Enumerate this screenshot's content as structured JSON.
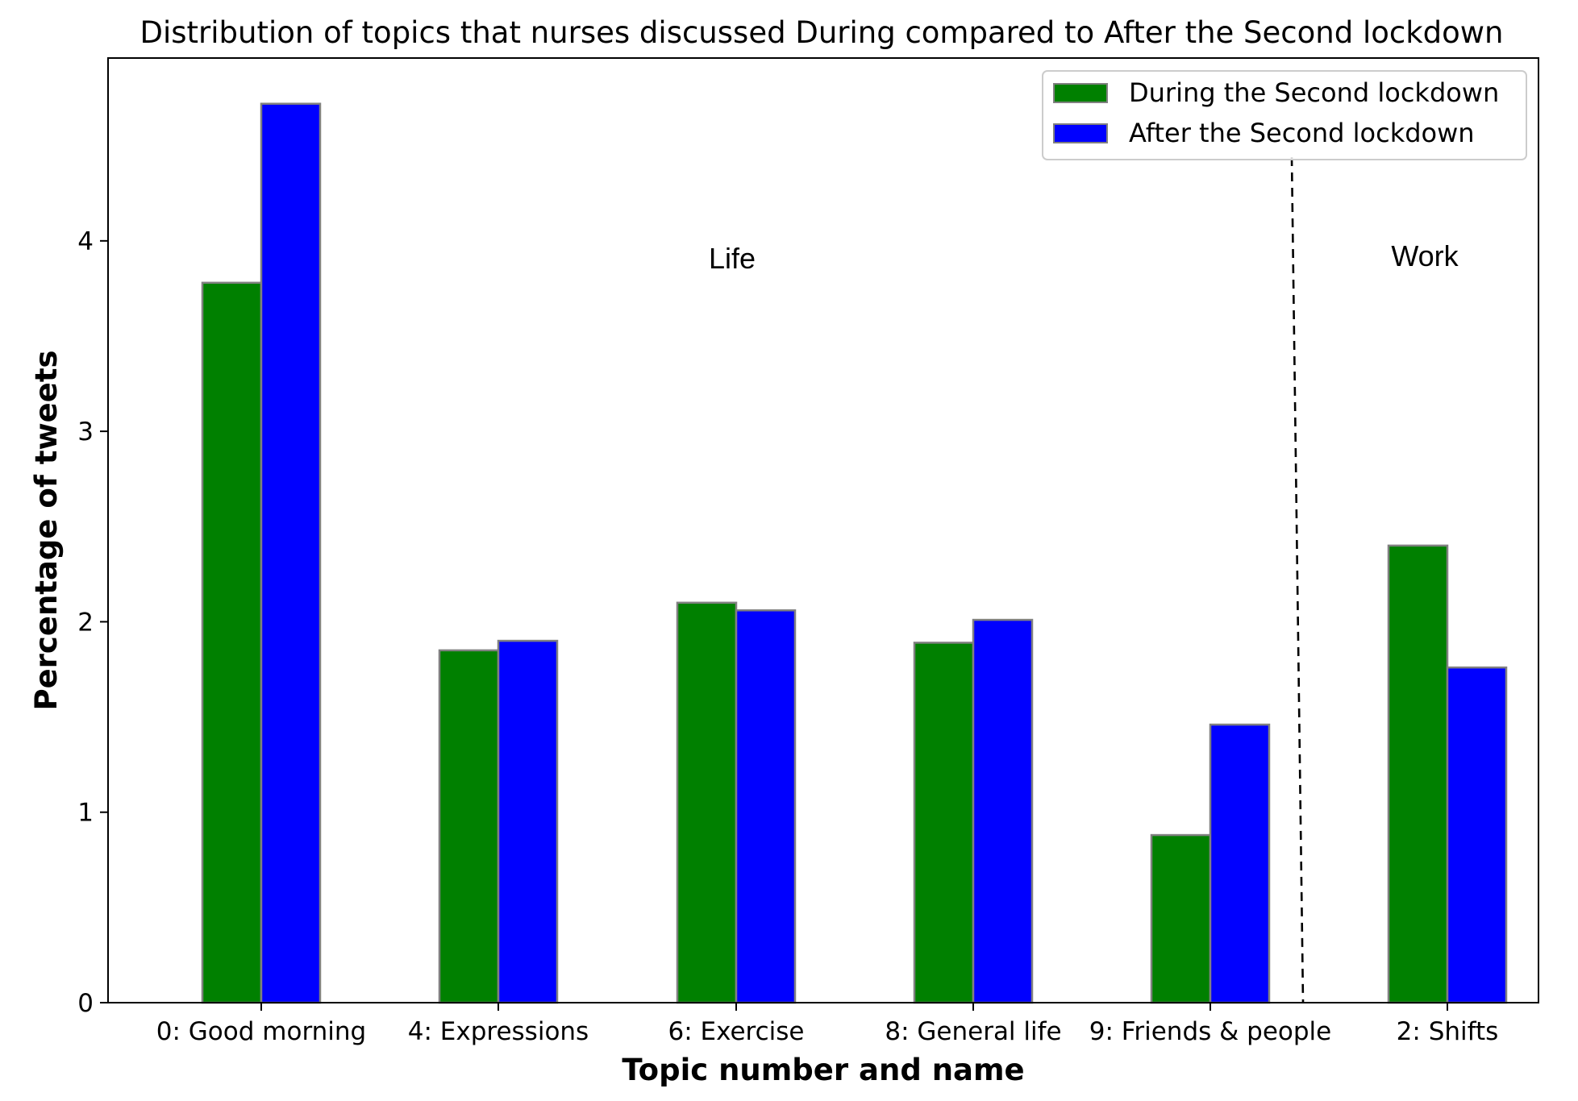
{
  "chart_data": {
    "type": "bar",
    "title": "Distribution of topics that nurses discussed During compared to After the Second lockdown",
    "xlabel": "Topic number and name",
    "ylabel": "Percentage of tweets",
    "categories": [
      "0: Good morning",
      "4: Expressions",
      "6: Exercise",
      "8: General life",
      "9: Friends & people",
      "2: Shifts"
    ],
    "series": [
      {
        "name": "During the Second lockdown",
        "color": "#008000",
        "values": [
          3.78,
          1.85,
          2.1,
          1.89,
          0.88,
          2.4
        ]
      },
      {
        "name": "After the Second lockdown",
        "color": "#0000ff",
        "values": [
          4.72,
          1.9,
          2.06,
          2.01,
          1.46,
          1.76
        ]
      }
    ],
    "ylim": [
      0,
      4.96
    ],
    "yticks": [
      0,
      1,
      2,
      3,
      4
    ],
    "grid": false,
    "legend_position": "top-right",
    "annotations": [
      {
        "text": "Life",
        "group": "life"
      },
      {
        "text": "Work",
        "group": "work"
      }
    ],
    "divider": {
      "style": "dashed",
      "between": [
        "9: Friends & people",
        "2: Shifts"
      ]
    }
  }
}
